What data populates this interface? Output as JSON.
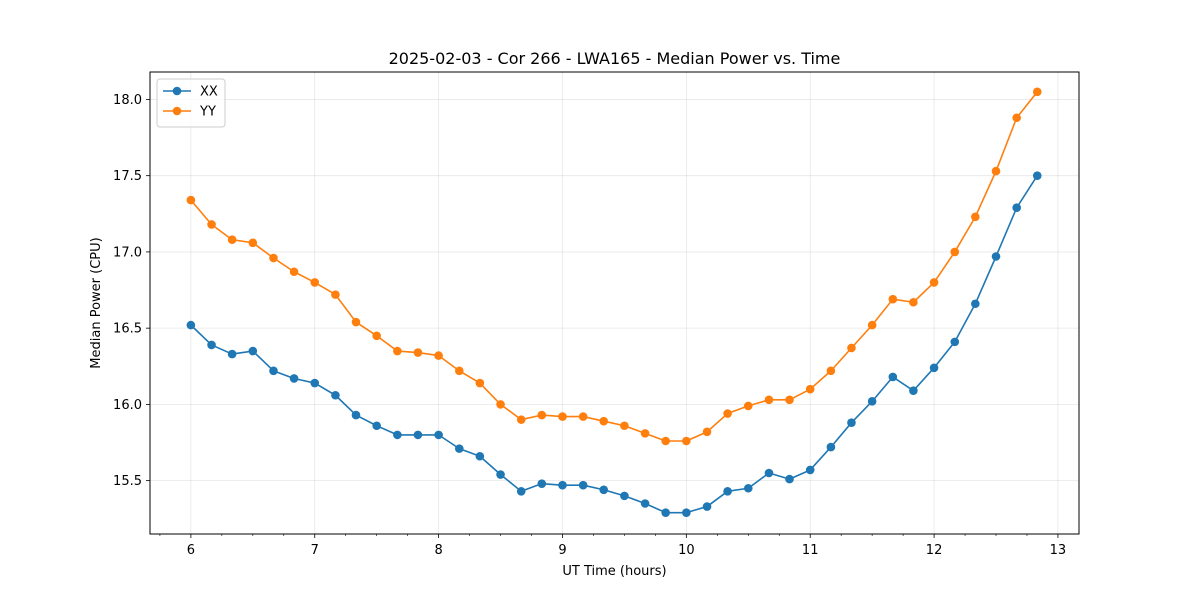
{
  "chart_data": {
    "type": "line",
    "title": "2025-02-03 - Cor 266 - LWA165 - Median Power vs. Time",
    "xlabel": "UT Time (hours)",
    "ylabel": "Median Power (CPU)",
    "xlim": [
      5.67,
      13.17
    ],
    "ylim": [
      15.15,
      18.18
    ],
    "xticks": [
      6,
      7,
      8,
      9,
      10,
      11,
      12,
      13
    ],
    "xtick_labels": [
      "6",
      "7",
      "8",
      "9",
      "10",
      "11",
      "12",
      "13"
    ],
    "xminor_step": 0.25,
    "yticks": [
      15.5,
      16.0,
      16.5,
      17.0,
      17.5,
      18.0
    ],
    "ytick_labels": [
      "15.5",
      "16.0",
      "16.5",
      "17.0",
      "17.5",
      "18.0"
    ],
    "grid": true,
    "legend_position": "upper-left",
    "x": [
      6.0,
      6.167,
      6.333,
      6.5,
      6.667,
      6.833,
      7.0,
      7.167,
      7.333,
      7.5,
      7.667,
      7.833,
      8.0,
      8.167,
      8.333,
      8.5,
      8.667,
      8.833,
      9.0,
      9.167,
      9.333,
      9.5,
      9.667,
      9.833,
      10.0,
      10.167,
      10.333,
      10.5,
      10.667,
      10.833,
      11.0,
      11.167,
      11.333,
      11.5,
      11.667,
      11.833,
      12.0,
      12.167,
      12.333,
      12.5,
      12.667,
      12.833
    ],
    "series": [
      {
        "name": "XX",
        "color": "#1f77b4",
        "values": [
          16.52,
          16.39,
          16.33,
          16.35,
          16.22,
          16.17,
          16.14,
          16.06,
          15.93,
          15.86,
          15.8,
          15.8,
          15.8,
          15.71,
          15.66,
          15.54,
          15.43,
          15.48,
          15.47,
          15.47,
          15.44,
          15.4,
          15.35,
          15.29,
          15.29,
          15.33,
          15.43,
          15.45,
          15.55,
          15.51,
          15.57,
          15.72,
          15.88,
          16.02,
          16.18,
          16.09,
          16.24,
          16.41,
          16.66,
          16.97,
          17.29,
          17.5
        ]
      },
      {
        "name": "YY",
        "color": "#ff7f0e",
        "values": [
          17.34,
          17.18,
          17.08,
          17.06,
          16.96,
          16.87,
          16.8,
          16.72,
          16.54,
          16.45,
          16.35,
          16.34,
          16.32,
          16.22,
          16.14,
          16.0,
          15.9,
          15.93,
          15.92,
          15.92,
          15.89,
          15.86,
          15.81,
          15.76,
          15.76,
          15.82,
          15.94,
          15.99,
          16.03,
          16.03,
          16.1,
          16.22,
          16.37,
          16.52,
          16.69,
          16.67,
          16.8,
          17.0,
          17.23,
          17.53,
          17.88,
          18.05
        ]
      }
    ]
  }
}
